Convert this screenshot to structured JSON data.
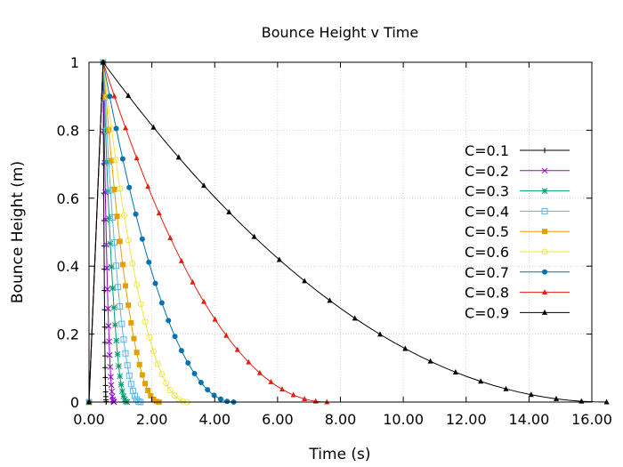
{
  "chart_data": {
    "type": "line",
    "title": "Bounce Height v Time",
    "xlabel": "Time (s)",
    "ylabel": "Bounce Height (m)",
    "xlim": [
      0,
      16
    ],
    "ylim": [
      0,
      1
    ],
    "x_ticks": [
      "0.00",
      "2.00",
      "4.00",
      "6.00",
      "8.00",
      "10.00",
      "12.00",
      "14.00",
      "16.00"
    ],
    "y_ticks": [
      "0",
      "0.2",
      "0.4",
      "0.6",
      "0.8",
      "1"
    ],
    "grid": true,
    "legend_position": "right",
    "drop_time": 0.45,
    "series": [
      {
        "name": "C=0.1",
        "coefficient": 0.1,
        "color": "#000000",
        "marker": "plus"
      },
      {
        "name": "C=0.2",
        "coefficient": 0.2,
        "color": "#9400d3",
        "marker": "cross"
      },
      {
        "name": "C=0.3",
        "coefficient": 0.3,
        "color": "#009e73",
        "marker": "star"
      },
      {
        "name": "C=0.4",
        "coefficient": 0.4,
        "color": "#56b4e9",
        "marker": "open-square"
      },
      {
        "name": "C=0.5",
        "coefficient": 0.5,
        "color": "#e69f00",
        "marker": "filled-square"
      },
      {
        "name": "C=0.6",
        "coefficient": 0.6,
        "color": "#f0e442",
        "marker": "open-circle"
      },
      {
        "name": "C=0.7",
        "coefficient": 0.7,
        "color": "#0072b2",
        "marker": "filled-circle"
      },
      {
        "name": "C=0.8",
        "coefficient": 0.8,
        "color": "#e51e10",
        "marker": "triangle"
      },
      {
        "name": "C=0.9",
        "coefficient": 0.9,
        "color": "#000000",
        "marker": "triangle"
      }
    ]
  }
}
